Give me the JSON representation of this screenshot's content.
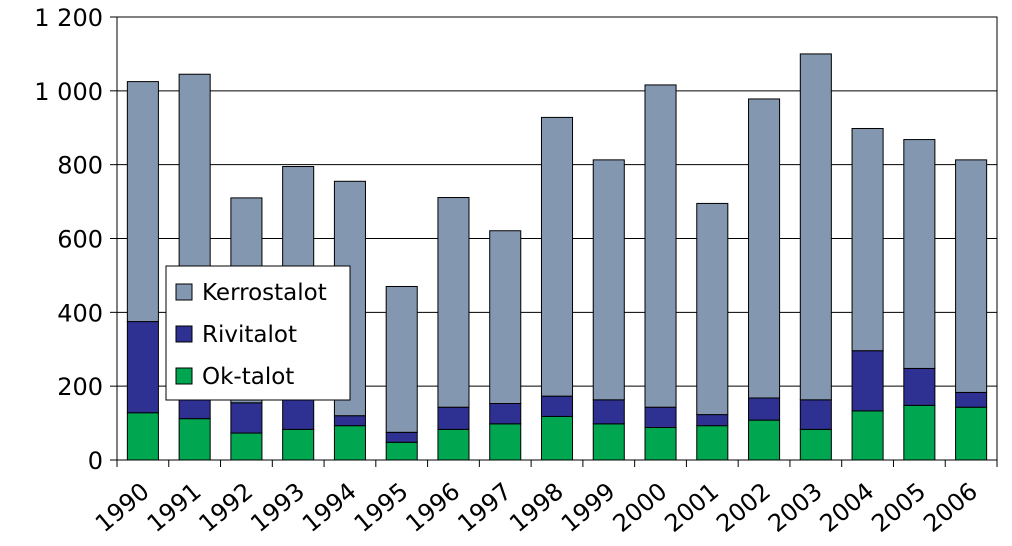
{
  "chart_data": {
    "type": "bar",
    "stacked": true,
    "title": "",
    "xlabel": "",
    "ylabel": "",
    "categories": [
      "1990",
      "1991",
      "1992",
      "1993",
      "1994",
      "1995",
      "1996",
      "1997",
      "1998",
      "1999",
      "2000",
      "2001",
      "2002",
      "2003",
      "2004",
      "2005",
      "2006"
    ],
    "series": [
      {
        "name": "Ok-talot",
        "color": "#00a650",
        "values": [
          128,
          112,
          73,
          83,
          93,
          48,
          83,
          98,
          118,
          98,
          88,
          93,
          108,
          83,
          133,
          148,
          143
        ]
      },
      {
        "name": "Rivitalot",
        "color": "#2e3192",
        "values": [
          247,
          163,
          82,
          87,
          27,
          27,
          60,
          55,
          55,
          65,
          55,
          30,
          60,
          80,
          163,
          100,
          40
        ]
      },
      {
        "name": "Kerrostalot",
        "color": "#8497b0",
        "values": [
          650,
          770,
          555,
          625,
          635,
          395,
          568,
          468,
          755,
          650,
          873,
          572,
          810,
          937,
          602,
          620,
          630
        ]
      }
    ],
    "ylim": [
      0,
      1200
    ],
    "yticks": [
      0,
      200,
      400,
      600,
      800,
      1000,
      1200
    ],
    "ytick_labels": [
      "0",
      "200",
      "400",
      "600",
      "800",
      "1 000",
      "1 200"
    ],
    "grid": "horizontal",
    "legend": {
      "placement": "left-center",
      "order": [
        "Kerrostalot",
        "Rivitalot",
        "Ok-talot"
      ]
    }
  }
}
